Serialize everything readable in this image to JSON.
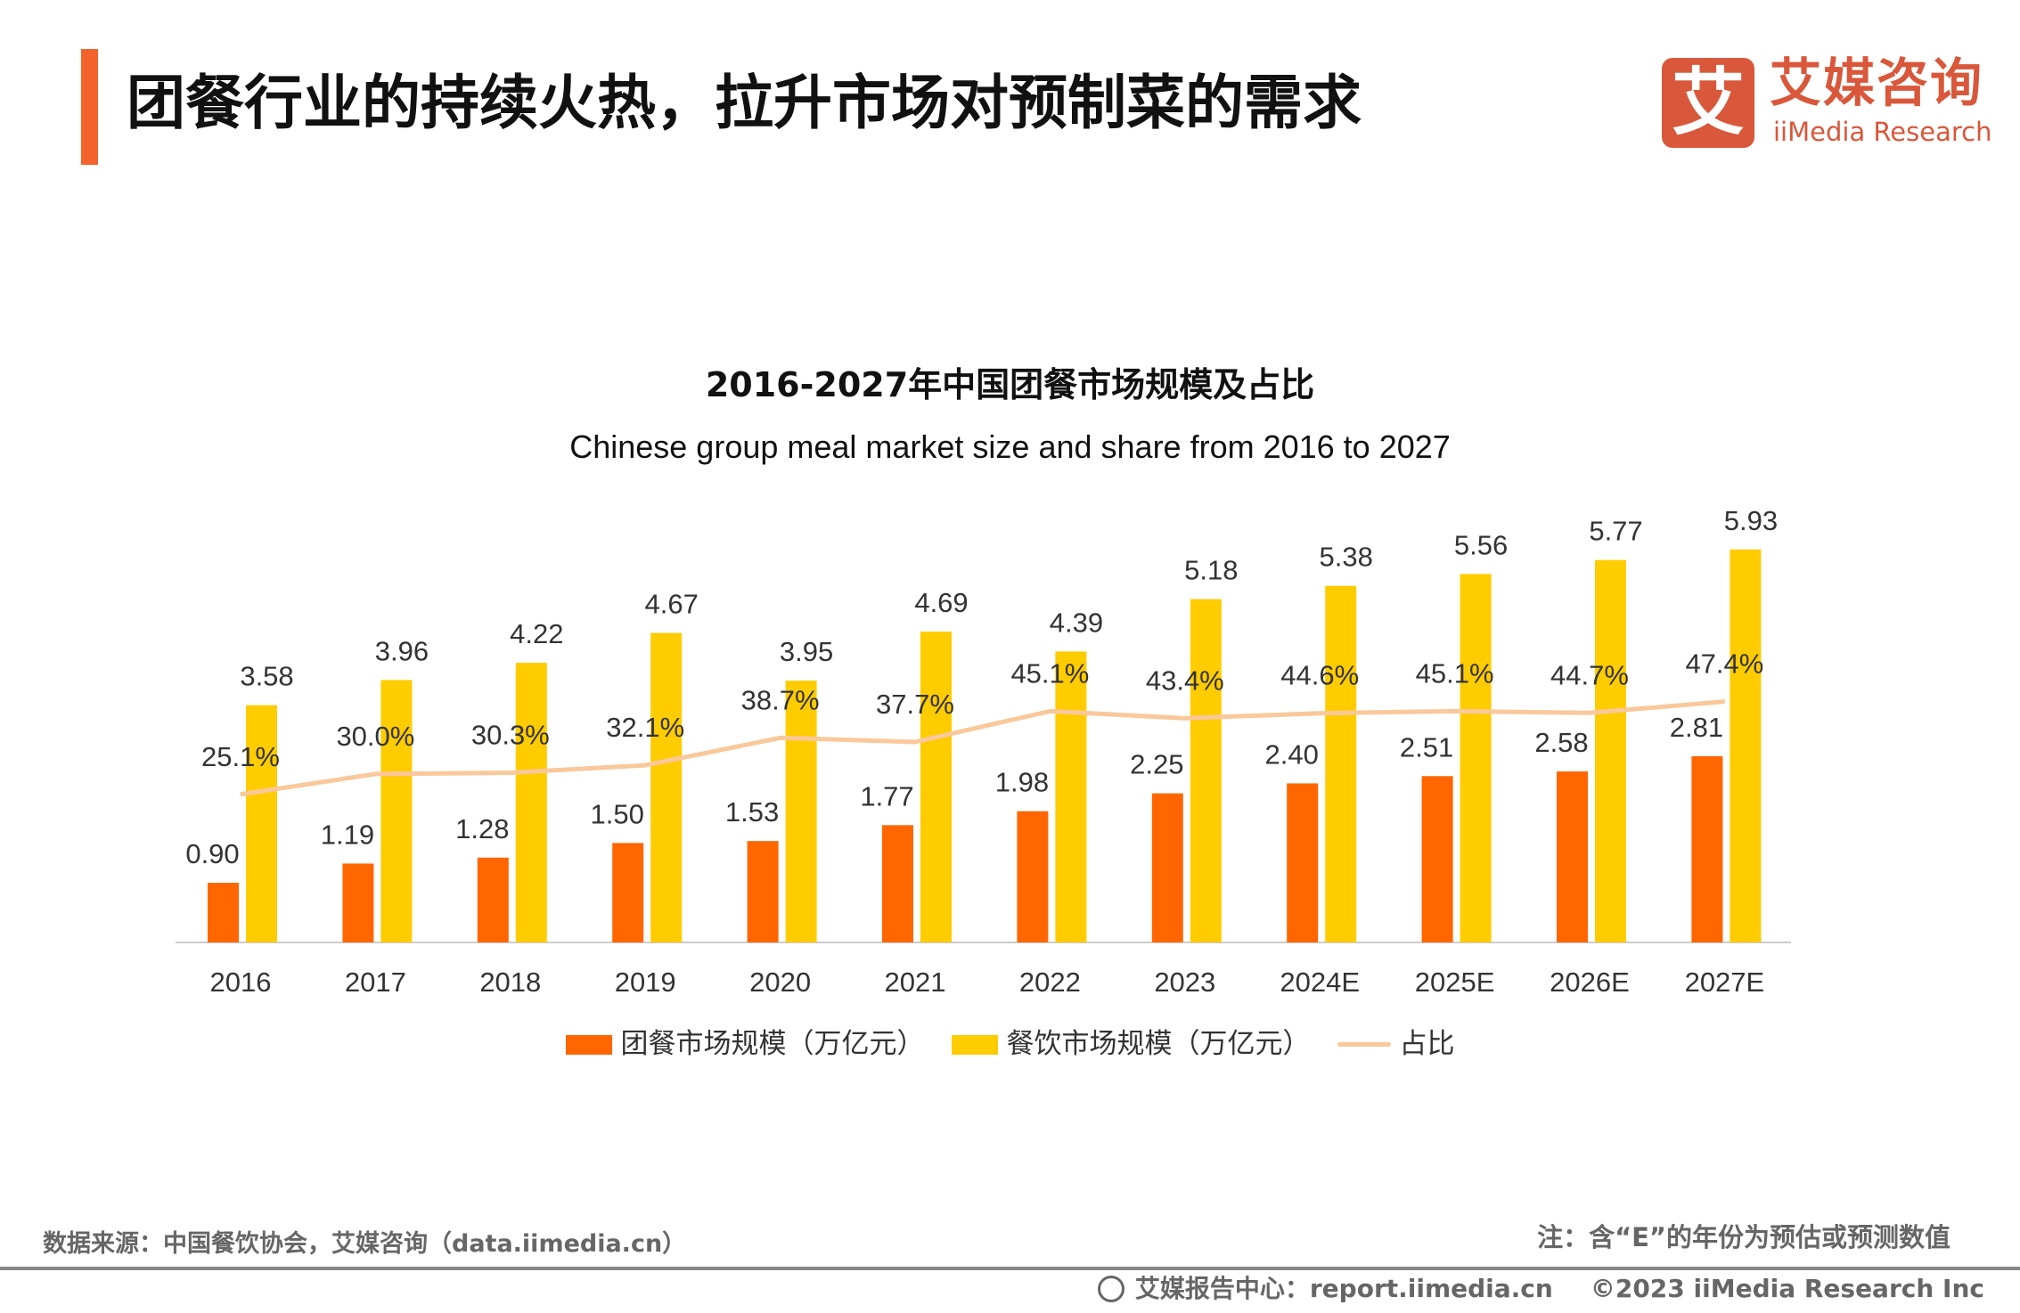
{
  "header": {
    "title": "团餐行业的持续火热，拉升市场对预制菜的需求"
  },
  "logo": {
    "mark": "艾",
    "cn": "艾媒咨询",
    "en": "iiMedia Research"
  },
  "colors": {
    "accent": "#F4622C",
    "logo": "#D9573A",
    "group_meal": "#FF6600",
    "catering": "#FFCC00",
    "share": "#F9C89B"
  },
  "chart_data": {
    "type": "bar",
    "title": "2016-2027年中国团餐市场规模及占比",
    "subtitle": "Chinese group meal market size and share from 2016 to 2027",
    "categories": [
      "2016",
      "2017",
      "2018",
      "2019",
      "2020",
      "2021",
      "2022",
      "2023",
      "2024E",
      "2025E",
      "2026E",
      "2027E"
    ],
    "series": [
      {
        "name": "团餐市场规模（万亿元）",
        "kind": "bar",
        "values": [
          0.9,
          1.19,
          1.28,
          1.5,
          1.53,
          1.77,
          1.98,
          2.25,
          2.4,
          2.51,
          2.58,
          2.81
        ],
        "labels": [
          "0.90",
          "1.19",
          "1.28",
          "1.50",
          "1.53",
          "1.77",
          "1.98",
          "2.25",
          "2.40",
          "2.51",
          "2.58",
          "2.81"
        ]
      },
      {
        "name": "餐饮市场规模（万亿元）",
        "kind": "bar",
        "values": [
          3.58,
          3.96,
          4.22,
          4.67,
          3.95,
          4.69,
          4.39,
          5.18,
          5.38,
          5.56,
          5.77,
          5.93
        ],
        "labels": [
          "3.58",
          "3.96",
          "4.22",
          "4.67",
          "3.95",
          "4.69",
          "4.39",
          "5.18",
          "5.38",
          "5.56",
          "5.77",
          "5.93"
        ]
      },
      {
        "name": "占比",
        "kind": "line",
        "values": [
          25.1,
          30.0,
          30.3,
          32.1,
          38.7,
          37.7,
          45.1,
          43.4,
          44.6,
          45.1,
          44.7,
          47.4
        ],
        "labels": [
          "25.1%",
          "30.0%",
          "30.3%",
          "32.1%",
          "38.7%",
          "37.7%",
          "45.1%",
          "43.4%",
          "44.6%",
          "45.1%",
          "44.7%",
          "47.4%"
        ]
      }
    ],
    "legend": "bottom",
    "grid": false
  },
  "footer": {
    "source": "数据来源：中国餐饮协会，艾媒咨询（data.iimedia.cn）",
    "note": "注：含“E”的年份为预估或预测数值",
    "report": "艾媒报告中心：report.iimedia.cn",
    "copyright": "©2023  iiMedia Research  Inc"
  }
}
